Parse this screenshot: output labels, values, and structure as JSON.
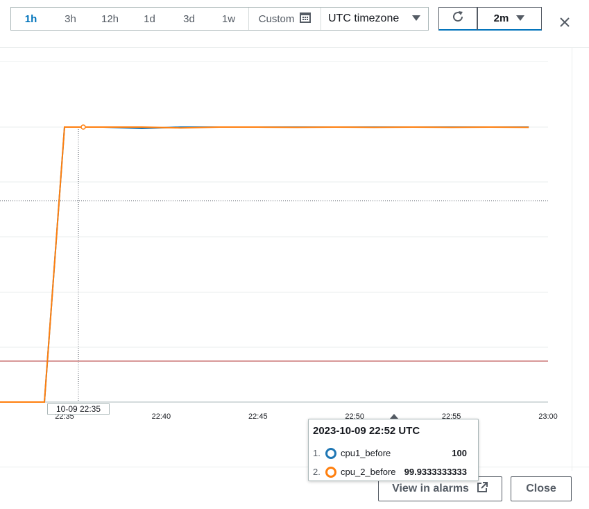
{
  "toolbar": {
    "ranges": [
      {
        "label": "1h",
        "active": true
      },
      {
        "label": "3h",
        "active": false
      },
      {
        "label": "12h",
        "active": false
      },
      {
        "label": "1d",
        "active": false
      },
      {
        "label": "3d",
        "active": false
      },
      {
        "label": "1w",
        "active": false
      }
    ],
    "custom_label": "Custom",
    "timezone": "UTC timezone",
    "interval": "2m"
  },
  "icons": {
    "calendar": "calendar-icon",
    "dropdown": "caret-down-icon",
    "refresh": "refresh-icon",
    "close": "close-icon",
    "external": "external-link-icon"
  },
  "chart_data": {
    "type": "line",
    "x_ticks": [
      "22:35",
      "22:40",
      "22:45",
      "22:50",
      "22:55",
      "23:00"
    ],
    "series": [
      {
        "name": "cpu1_before",
        "color": "#1f77b4",
        "points": [
          [
            "22:33",
            0
          ],
          [
            "22:34",
            0
          ],
          [
            "22:35",
            100
          ],
          [
            "22:37",
            100
          ],
          [
            "22:39",
            99.5
          ],
          [
            "22:41",
            100
          ],
          [
            "22:43",
            100
          ],
          [
            "22:45",
            100
          ],
          [
            "22:47",
            100
          ],
          [
            "22:49",
            100
          ],
          [
            "22:51",
            100
          ],
          [
            "22:53",
            100
          ],
          [
            "22:55",
            100
          ],
          [
            "22:57",
            100
          ],
          [
            "22:59",
            100
          ]
        ]
      },
      {
        "name": "cpu_2_before",
        "color": "#ff7f0e",
        "points": [
          [
            "22:33",
            0
          ],
          [
            "22:34",
            0
          ],
          [
            "22:35",
            100
          ],
          [
            "22:37",
            100
          ],
          [
            "22:39",
            100
          ],
          [
            "22:41",
            99.7
          ],
          [
            "22:43",
            100
          ],
          [
            "22:45",
            100
          ],
          [
            "22:47",
            99.9
          ],
          [
            "22:49",
            100
          ],
          [
            "22:51",
            99.9
          ],
          [
            "22:53",
            100
          ],
          [
            "22:55",
            99.9
          ],
          [
            "22:57",
            100
          ],
          [
            "22:59",
            99.9
          ]
        ]
      }
    ],
    "threshold_color": "#b03030",
    "hover_time": "10-09 22:35"
  },
  "tooltip": {
    "title": "2023-10-09 22:52 UTC",
    "rows": [
      {
        "index": "1.",
        "name": "cpu1_before",
        "value": "100",
        "color": "#1f77b4"
      },
      {
        "index": "2.",
        "name": "cpu_2_before",
        "value": "99.9333333333",
        "color": "#ff7f0e"
      }
    ]
  },
  "footer": {
    "view_alarms": "View in alarms",
    "close": "Close"
  }
}
